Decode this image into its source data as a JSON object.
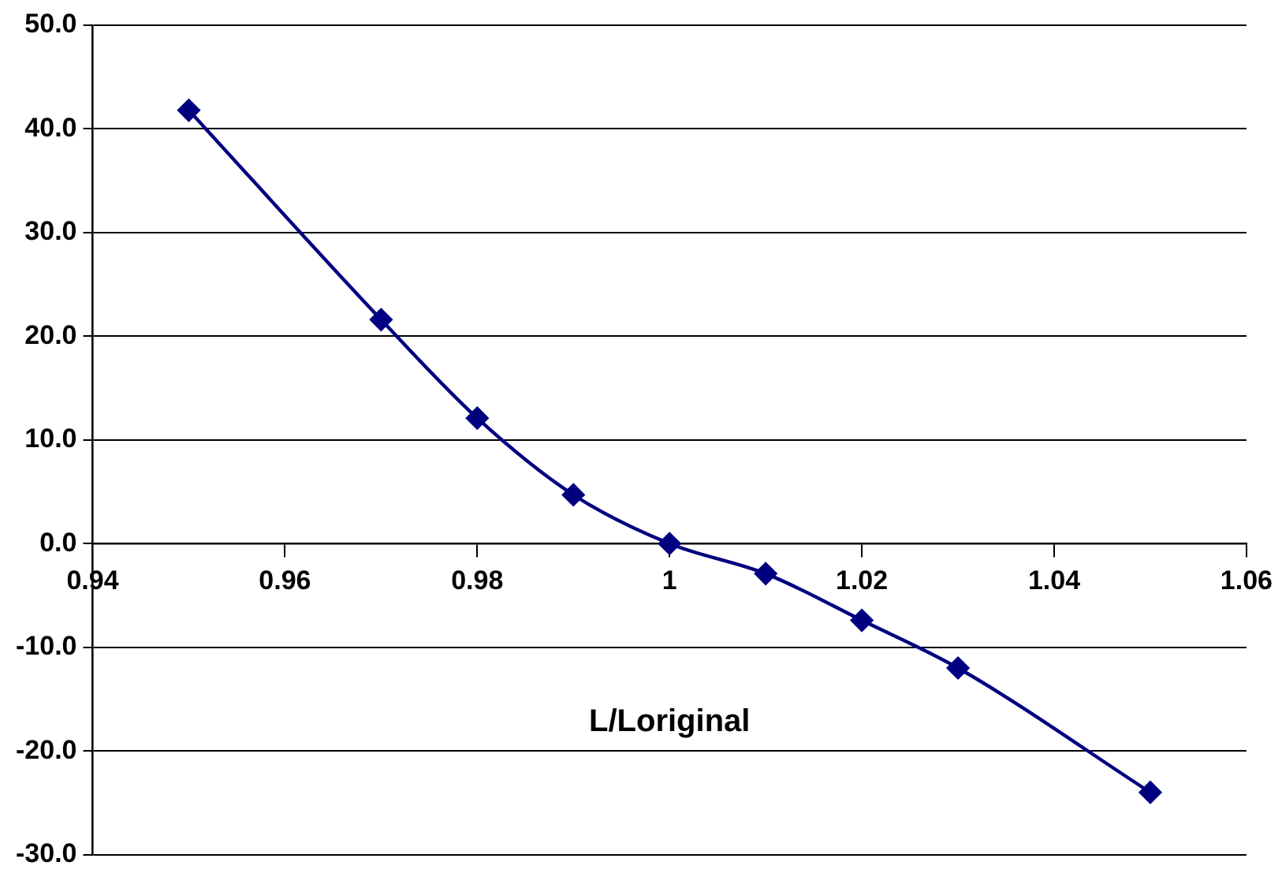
{
  "chart_data": {
    "type": "line",
    "xlabel": "L/Loriginal",
    "x": [
      0.95,
      0.97,
      0.98,
      0.99,
      1.0,
      1.01,
      1.02,
      1.03,
      1.05
    ],
    "series": [
      {
        "color": "#000080",
        "values": [
          41.8,
          21.6,
          12.1,
          4.7,
          0.0,
          -2.9,
          -7.4,
          -12.0,
          -24.0
        ]
      }
    ],
    "xlim": [
      0.94,
      1.06
    ],
    "xticks": [
      0.94,
      0.96,
      0.98,
      1,
      1.02,
      1.04,
      1.06
    ],
    "ylim": [
      -30,
      50
    ],
    "yticks": [
      {
        "value": -30,
        "label": "-30.0"
      },
      {
        "value": -20,
        "label": "-20.0"
      },
      {
        "value": -10,
        "label": "-10.0"
      },
      {
        "value": 0,
        "label": "0.0"
      },
      {
        "value": 10,
        "label": "10.0"
      },
      {
        "value": 20,
        "label": "20.0"
      },
      {
        "value": 30,
        "label": "30.0"
      },
      {
        "value": 40,
        "label": "40.0"
      },
      {
        "value": 50,
        "label": "50.0"
      }
    ],
    "grid": "y",
    "legend": false,
    "marker": "diamond",
    "line_style": "solid"
  }
}
